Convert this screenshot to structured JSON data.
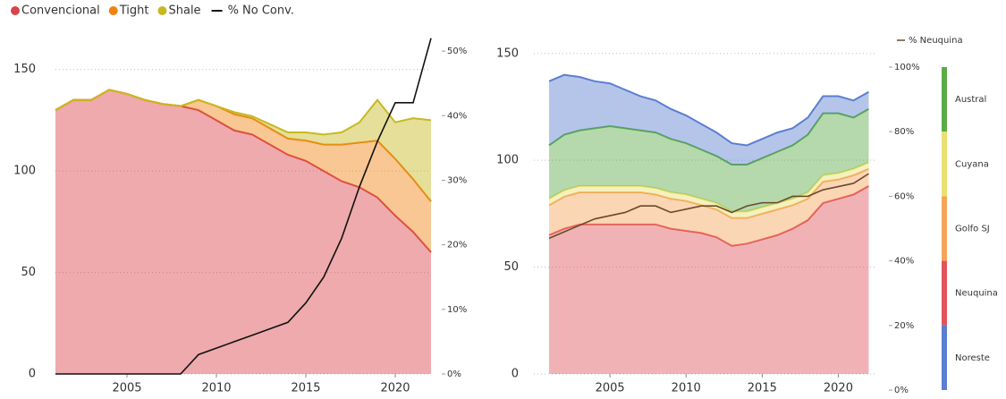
{
  "chart_data": [
    {
      "type": "stacked_area",
      "x": [
        2001,
        2002,
        2003,
        2004,
        2005,
        2006,
        2007,
        2008,
        2009,
        2010,
        2011,
        2012,
        2013,
        2014,
        2015,
        2016,
        2017,
        2018,
        2019,
        2020,
        2021,
        2022
      ],
      "series": [
        {
          "name": "Convencional",
          "color": "#d9434a",
          "values": [
            130,
            135,
            135,
            140,
            138,
            135,
            133,
            132,
            130,
            125,
            120,
            118,
            113,
            108,
            105,
            100,
            95,
            92,
            87,
            78,
            70,
            60
          ]
        },
        {
          "name": "Tight",
          "color": "#f0820f",
          "values": [
            0,
            0,
            0,
            0,
            0,
            0,
            0,
            0,
            5,
            7,
            8,
            8,
            8,
            8,
            10,
            13,
            18,
            22,
            28,
            28,
            26,
            25
          ]
        },
        {
          "name": "Shale",
          "color": "#c8b820",
          "values": [
            0,
            0,
            0,
            0,
            0,
            0,
            0,
            0,
            0,
            0,
            1,
            1,
            2,
            3,
            4,
            5,
            6,
            10,
            20,
            18,
            30,
            40
          ]
        },
        {
          "name": "% No Conv.",
          "color": "#111111",
          "axis": "y2",
          "values": [
            0,
            0,
            0,
            0,
            0,
            0,
            0,
            0,
            3,
            4,
            5,
            6,
            7,
            8,
            11,
            15,
            21,
            29,
            36,
            42,
            42,
            52
          ]
        }
      ],
      "xlim": [
        2001,
        2022
      ],
      "xticks": [
        2005,
        2010,
        2015,
        2020
      ],
      "ylim": [
        0,
        175
      ],
      "yticks": [
        0,
        50,
        100,
        150
      ],
      "y2lim": [
        0,
        55
      ],
      "y2ticks": [
        {
          "value": 0,
          "label": "0%"
        },
        {
          "value": 10,
          "label": "10%"
        },
        {
          "value": 20,
          "label": "20%"
        },
        {
          "value": 30,
          "label": "30%"
        },
        {
          "value": 40,
          "label": "40%"
        },
        {
          "value": 50,
          "label": "50%"
        }
      ],
      "grid": true,
      "legend": "top"
    },
    {
      "type": "stacked_area",
      "x": [
        2001,
        2002,
        2003,
        2004,
        2005,
        2006,
        2007,
        2008,
        2009,
        2010,
        2011,
        2012,
        2013,
        2014,
        2015,
        2016,
        2017,
        2018,
        2019,
        2020,
        2021,
        2022
      ],
      "series": [
        {
          "name": "Neuquina",
          "color": "#e0555a",
          "values": [
            65,
            68,
            70,
            70,
            70,
            70,
            70,
            70,
            68,
            67,
            66,
            64,
            60,
            61,
            63,
            65,
            68,
            72,
            80,
            82,
            84,
            88
          ]
        },
        {
          "name": "Golfo SJ",
          "color": "#f5a55a",
          "values": [
            14,
            15,
            15,
            15,
            15,
            15,
            15,
            14,
            14,
            14,
            13,
            13,
            13,
            12,
            12,
            12,
            11,
            10,
            10,
            9,
            9,
            8
          ]
        },
        {
          "name": "Cuyana",
          "color": "#e8e070",
          "values": [
            3,
            3,
            3,
            3,
            3,
            3,
            3,
            3,
            3,
            3,
            3,
            3,
            3,
            3,
            3,
            3,
            3,
            3,
            3,
            3,
            3,
            3
          ]
        },
        {
          "name": "Austral",
          "color": "#5aab46",
          "values": [
            25,
            26,
            26,
            27,
            28,
            27,
            26,
            26,
            25,
            24,
            23,
            22,
            22,
            22,
            23,
            24,
            25,
            27,
            29,
            28,
            24,
            25
          ]
        },
        {
          "name": "Noreste",
          "color": "#5b7fd0",
          "values": [
            30,
            28,
            25,
            22,
            20,
            18,
            16,
            15,
            14,
            13,
            12,
            11,
            10,
            9,
            9,
            9,
            8,
            8,
            8,
            8,
            8,
            8
          ]
        },
        {
          "name": "% Neuquina",
          "color": "#6b4a2a",
          "axis": "y2",
          "values": [
            47,
            49,
            51,
            53,
            54,
            55,
            57,
            57,
            55,
            56,
            57,
            57,
            55,
            57,
            58,
            58,
            60,
            60,
            62,
            63,
            64,
            67
          ]
        }
      ],
      "xlim": [
        2000,
        2022.5
      ],
      "xticks": [
        2005,
        2010,
        2015,
        2020
      ],
      "ylim": [
        0,
        170
      ],
      "yticks": [
        0,
        50,
        100,
        150
      ],
      "y2lim": [
        0,
        100
      ],
      "y2ticks": [
        {
          "value": 0,
          "label": "0%"
        },
        {
          "value": 20,
          "label": "20%"
        },
        {
          "value": 40,
          "label": "40%"
        },
        {
          "value": 60,
          "label": "60%"
        },
        {
          "value": 80,
          "label": "80%"
        },
        {
          "value": 100,
          "label": "100%"
        }
      ],
      "grid": true,
      "legend": "right"
    }
  ]
}
